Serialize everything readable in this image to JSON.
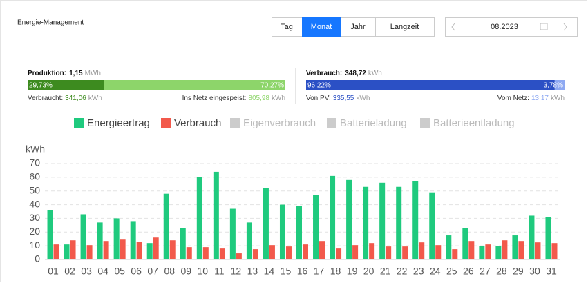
{
  "header": {
    "title": "Energie-Management",
    "tabs": [
      "Tag",
      "Monat",
      "Jahr",
      "Langzeit"
    ],
    "active_tab": 1,
    "date": "08.2023"
  },
  "production": {
    "label": "Produktion:",
    "value": "1,15",
    "unit": "MWh",
    "segments": [
      {
        "value": 29.73,
        "label": "29,73%",
        "color": "#3d8b1f"
      },
      {
        "value": 70.27,
        "label": "70,27%",
        "color": "#8dd56a"
      }
    ],
    "left": {
      "label": "Verbraucht:",
      "value": "341,06",
      "unit": "kWh"
    },
    "right": {
      "label": "Ins Netz eingespeist:",
      "value": "805,98",
      "unit": "kWh"
    }
  },
  "consumption": {
    "label": "Verbrauch:",
    "value": "348,72",
    "unit": "kWh",
    "segments": [
      {
        "value": 96.22,
        "label": "96,22%",
        "color": "#2b50c5"
      },
      {
        "value": 3.78,
        "label": "3,78%",
        "color": "#8ea9f2"
      }
    ],
    "left": {
      "label": "Von PV:",
      "value": "335,55",
      "unit": "kWh"
    },
    "right": {
      "label": "Vom Netz:",
      "value": "13,17",
      "unit": "kWh"
    }
  },
  "chart_data": {
    "type": "bar",
    "ylabel": "kWh",
    "categories": [
      "01",
      "02",
      "03",
      "04",
      "05",
      "06",
      "07",
      "08",
      "09",
      "10",
      "11",
      "12",
      "13",
      "14",
      "15",
      "16",
      "17",
      "18",
      "19",
      "20",
      "21",
      "22",
      "23",
      "24",
      "25",
      "26",
      "27",
      "28",
      "29",
      "30",
      "31"
    ],
    "series": [
      {
        "name": "Energieertrag",
        "color": "#1fca7e",
        "values": [
          36,
          11,
          33,
          27,
          30,
          28,
          12,
          48,
          23,
          60,
          64,
          37,
          27,
          52,
          40,
          39,
          47,
          61,
          58,
          53,
          56,
          53,
          57,
          49,
          17.6,
          23,
          9.6,
          9.6,
          17.6,
          32,
          31
        ]
      },
      {
        "name": "Verbrauch",
        "color": "#f2594b",
        "values": [
          11,
          14,
          10.5,
          13.5,
          14.5,
          13,
          16,
          14,
          9,
          9,
          8,
          4.5,
          7.5,
          10.5,
          9.5,
          11,
          13.5,
          8,
          10.5,
          12,
          9.5,
          9.5,
          12.5,
          10.5,
          7.5,
          13.5,
          11,
          14,
          13.5,
          12.5,
          12
        ]
      }
    ],
    "hidden_series": [
      "Eigenverbrauch",
      "Batterieladung",
      "Batterieentladung"
    ],
    "ylim": [
      0,
      70
    ],
    "yticks": [
      0,
      10,
      20,
      30,
      40,
      50,
      60,
      70
    ],
    "grid": true
  }
}
